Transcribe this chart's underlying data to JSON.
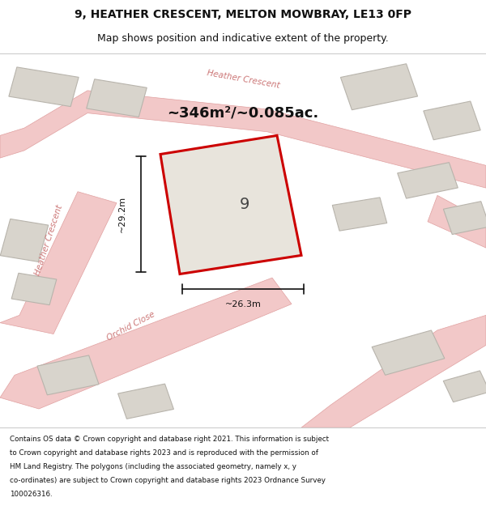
{
  "title_line1": "9, HEATHER CRESCENT, MELTON MOWBRAY, LE13 0FP",
  "title_line2": "Map shows position and indicative extent of the property.",
  "area_text": "~346m²/~0.085ac.",
  "property_number": "9",
  "dimension_width": "~26.3m",
  "dimension_height": "~29.2m",
  "footer_lines": [
    "Contains OS data © Crown copyright and database right 2021. This information is subject",
    "to Crown copyright and database rights 2023 and is reproduced with the permission of",
    "HM Land Registry. The polygons (including the associated geometry, namely x, y",
    "co-ordinates) are subject to Crown copyright and database rights 2023 Ordnance Survey",
    "100026316."
  ],
  "map_bg": "#eeecea",
  "road_color": "#f2c8c8",
  "road_stroke": "#e0a0a0",
  "building_fill": "#d8d4cc",
  "building_stroke": "#b8b4ac",
  "highlight_fill": "#e8e4dc",
  "highlight_stroke": "#cc0000",
  "measurement_color": "#111111",
  "title_color": "#111111",
  "road_label_color": "#cc7777",
  "footer_color": "#111111"
}
